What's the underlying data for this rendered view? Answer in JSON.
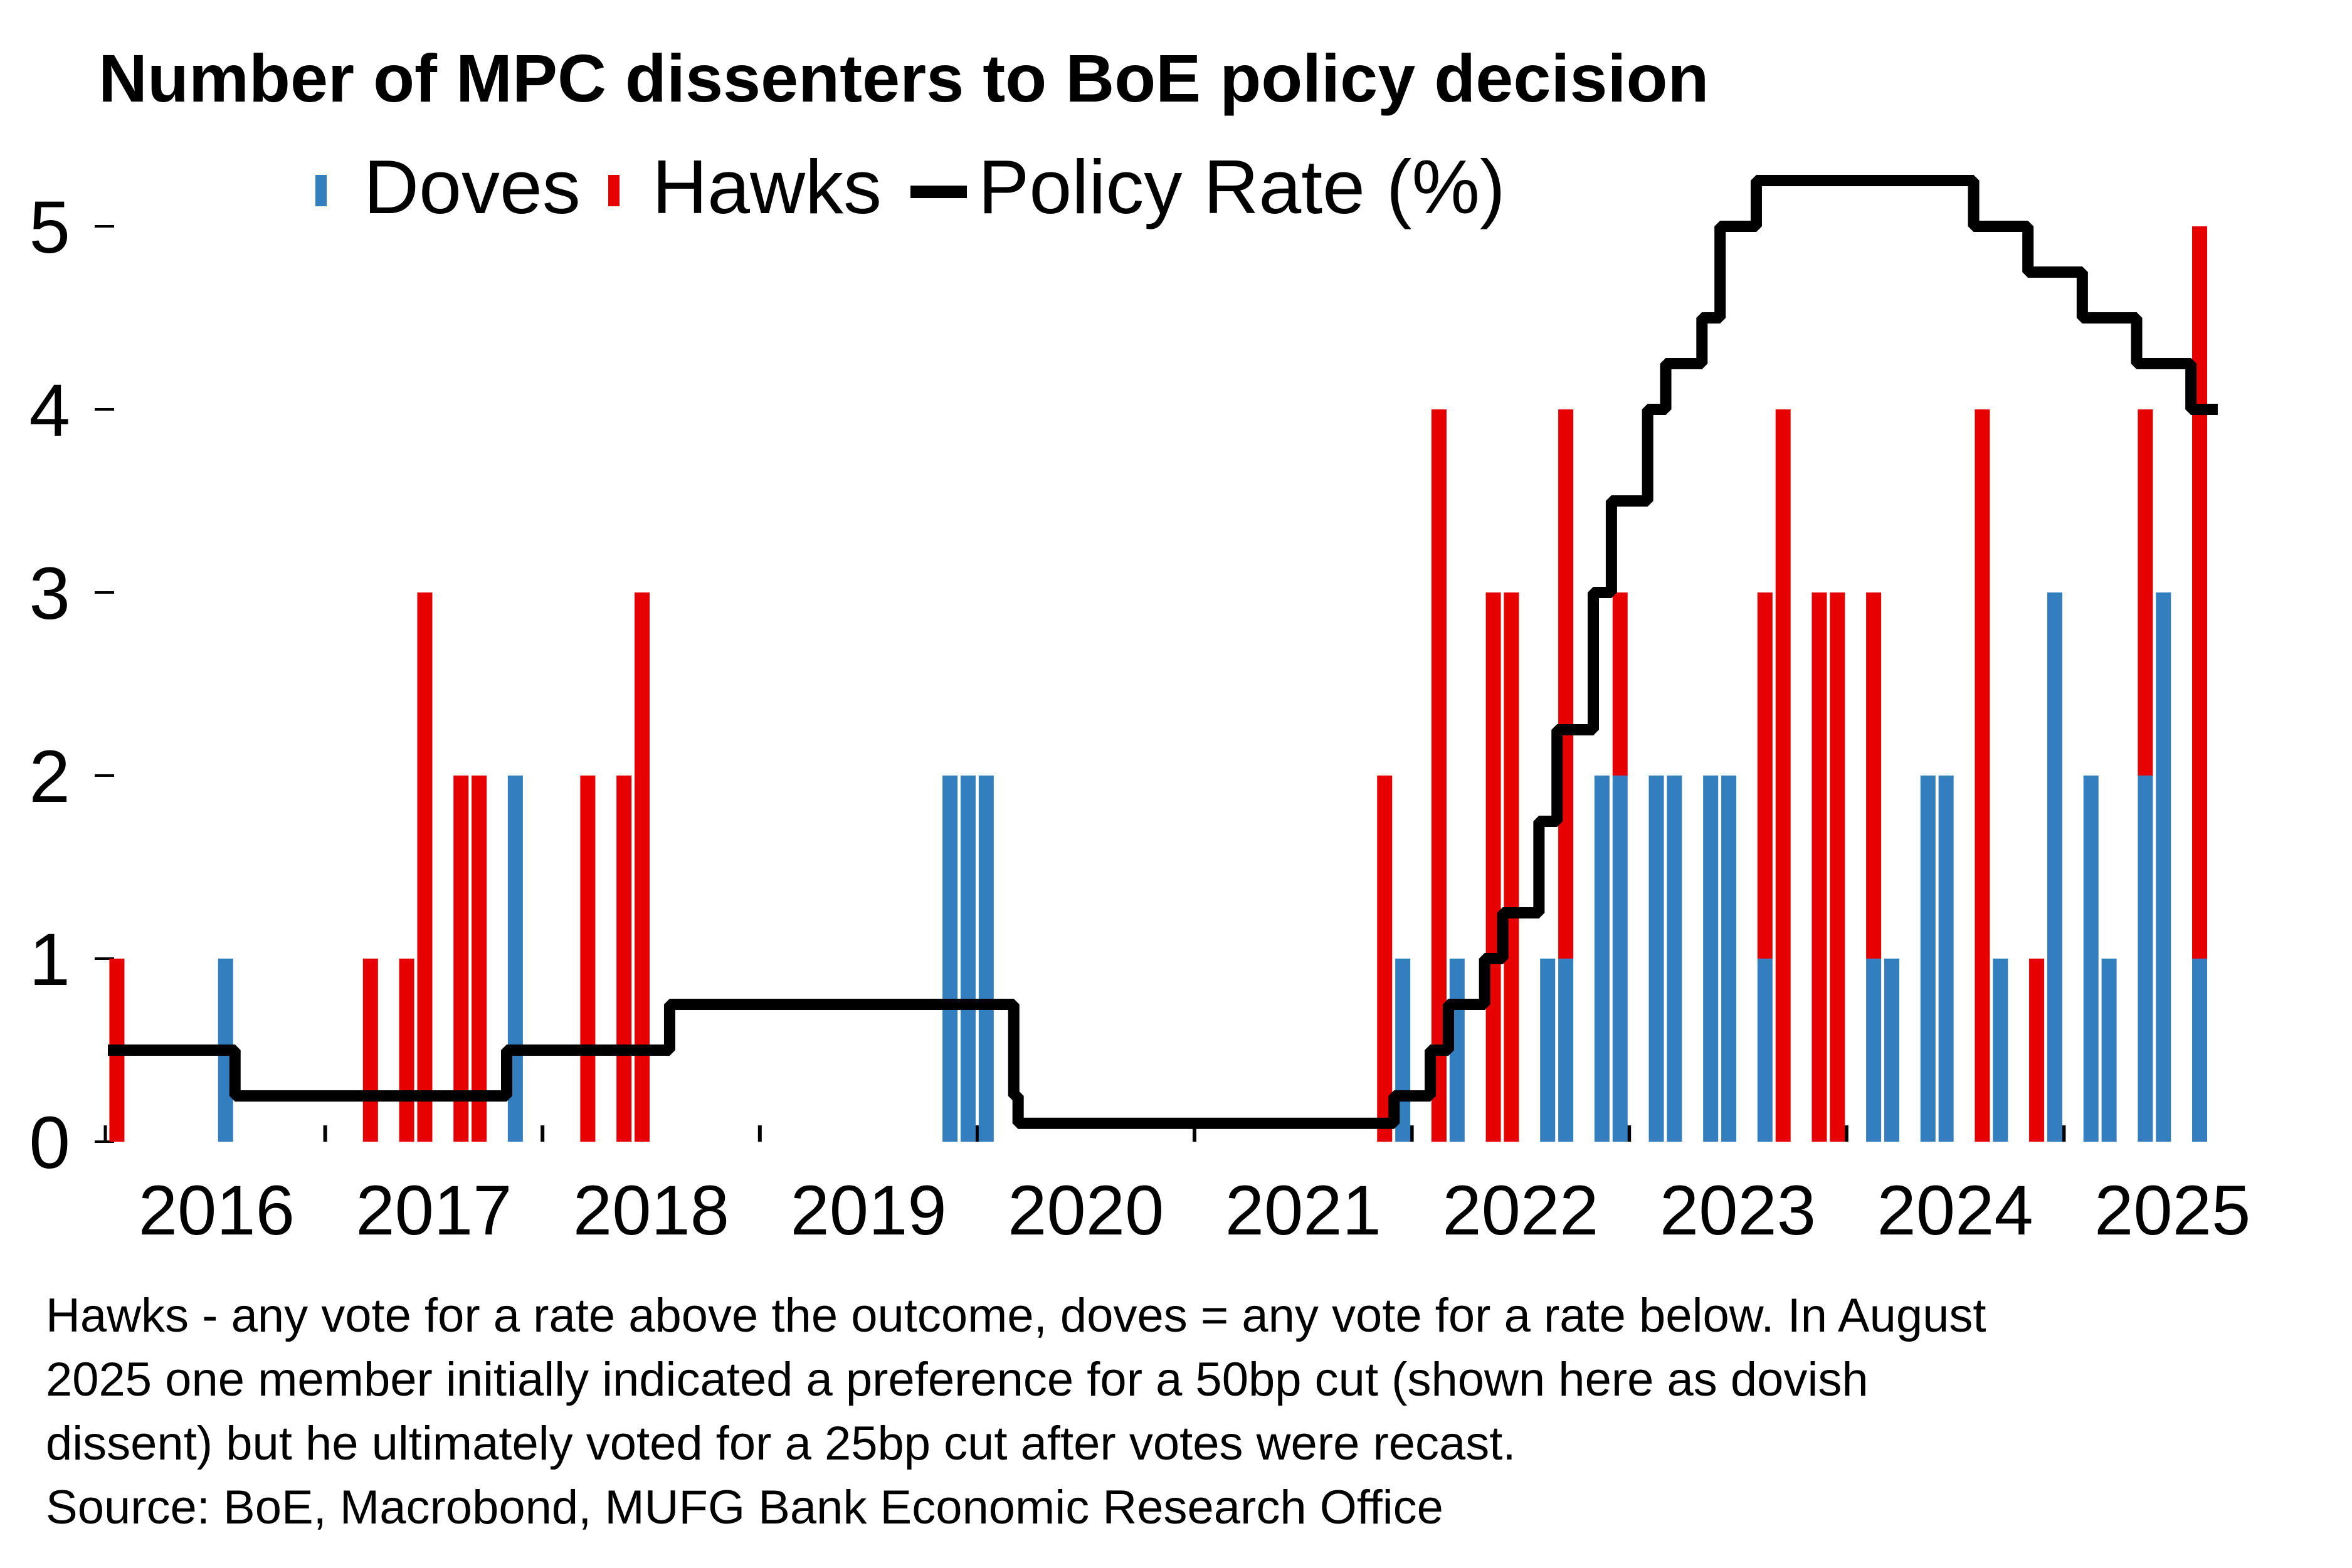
{
  "chart_data": {
    "type": "bar",
    "subtype": "stacked-bar-with-step-line",
    "title": "Number of MPC dissenters to BoE policy decision",
    "xlabel": "",
    "ylabel": "",
    "ylim": [
      0,
      5
    ],
    "yticks": [
      0,
      1,
      2,
      3,
      4,
      5
    ],
    "ytick_labels": [
      "0",
      "1",
      "2",
      "3",
      "4",
      "5"
    ],
    "xlim": [
      2016.0,
      2025.75
    ],
    "xtick_labels": [
      "2016",
      "2017",
      "2018",
      "2019",
      "2020",
      "2021",
      "2022",
      "2023",
      "2024",
      "2025"
    ],
    "grid": false,
    "legend": {
      "placement": "top",
      "entries": [
        {
          "label": "Doves",
          "marker": "square",
          "color": "#337EBF"
        },
        {
          "label": "Hawks",
          "marker": "square",
          "color": "#E60000"
        },
        {
          "label": "Policy Rate (%)",
          "marker": "line",
          "color": "#000000"
        }
      ]
    },
    "colors": {
      "doves": "#337EBF",
      "hawks": "#E60000",
      "policy_rate": "#000000"
    },
    "meetings": [
      {
        "date": "2016-01",
        "doves": 0,
        "hawks": 1
      },
      {
        "date": "2016-07",
        "doves": 1,
        "hawks": 0
      },
      {
        "date": "2017-03",
        "doves": 0,
        "hawks": 1
      },
      {
        "date": "2017-05",
        "doves": 0,
        "hawks": 1
      },
      {
        "date": "2017-06",
        "doves": 0,
        "hawks": 3
      },
      {
        "date": "2017-08",
        "doves": 0,
        "hawks": 2
      },
      {
        "date": "2017-09",
        "doves": 0,
        "hawks": 2
      },
      {
        "date": "2017-11",
        "doves": 2,
        "hawks": 0
      },
      {
        "date": "2018-03",
        "doves": 0,
        "hawks": 2
      },
      {
        "date": "2018-05",
        "doves": 0,
        "hawks": 2
      },
      {
        "date": "2018-06",
        "doves": 0,
        "hawks": 3
      },
      {
        "date": "2019-11",
        "doves": 2,
        "hawks": 0
      },
      {
        "date": "2019-12",
        "doves": 2,
        "hawks": 0
      },
      {
        "date": "2020-01",
        "doves": 2,
        "hawks": 0
      },
      {
        "date": "2021-11",
        "doves": 0,
        "hawks": 2
      },
      {
        "date": "2021-12",
        "doves": 1,
        "hawks": 0
      },
      {
        "date": "2022-02",
        "doves": 0,
        "hawks": 4
      },
      {
        "date": "2022-03",
        "doves": 1,
        "hawks": 0
      },
      {
        "date": "2022-05",
        "doves": 0,
        "hawks": 3
      },
      {
        "date": "2022-06",
        "doves": 0,
        "hawks": 3
      },
      {
        "date": "2022-08",
        "doves": 1,
        "hawks": 0
      },
      {
        "date": "2022-09",
        "doves": 1,
        "hawks": 3
      },
      {
        "date": "2022-11",
        "doves": 2,
        "hawks": 0
      },
      {
        "date": "2022-12",
        "doves": 2,
        "hawks": 1
      },
      {
        "date": "2023-02",
        "doves": 2,
        "hawks": 0
      },
      {
        "date": "2023-03",
        "doves": 2,
        "hawks": 0
      },
      {
        "date": "2023-05",
        "doves": 2,
        "hawks": 0
      },
      {
        "date": "2023-06",
        "doves": 2,
        "hawks": 0
      },
      {
        "date": "2023-08",
        "doves": 1,
        "hawks": 2
      },
      {
        "date": "2023-09",
        "doves": 0,
        "hawks": 4
      },
      {
        "date": "2023-11",
        "doves": 0,
        "hawks": 3
      },
      {
        "date": "2023-12",
        "doves": 0,
        "hawks": 3
      },
      {
        "date": "2024-02",
        "doves": 1,
        "hawks": 2
      },
      {
        "date": "2024-03",
        "doves": 1,
        "hawks": 0
      },
      {
        "date": "2024-05",
        "doves": 2,
        "hawks": 0
      },
      {
        "date": "2024-06",
        "doves": 2,
        "hawks": 0
      },
      {
        "date": "2024-08",
        "doves": 0,
        "hawks": 4
      },
      {
        "date": "2024-09",
        "doves": 1,
        "hawks": 0
      },
      {
        "date": "2024-11",
        "doves": 0,
        "hawks": 1
      },
      {
        "date": "2024-12",
        "doves": 3,
        "hawks": 0
      },
      {
        "date": "2025-02",
        "doves": 2,
        "hawks": 0
      },
      {
        "date": "2025-03",
        "doves": 1,
        "hawks": 0
      },
      {
        "date": "2025-05",
        "doves": 2,
        "hawks": 2
      },
      {
        "date": "2025-06",
        "doves": 3,
        "hawks": 0
      },
      {
        "date": "2025-08",
        "doves": 1,
        "hawks": 4
      }
    ],
    "policy_rate": [
      {
        "date": "2016-01",
        "value": 0.5
      },
      {
        "date": "2016-08",
        "value": 0.25
      },
      {
        "date": "2017-11",
        "value": 0.5
      },
      {
        "date": "2018-08",
        "value": 0.75
      },
      {
        "date": "2020-03",
        "value": 0.25
      },
      {
        "date": "2020-03b",
        "value": 0.1
      },
      {
        "date": "2021-12",
        "value": 0.25
      },
      {
        "date": "2022-02",
        "value": 0.5
      },
      {
        "date": "2022-03",
        "value": 0.75
      },
      {
        "date": "2022-05",
        "value": 1.0
      },
      {
        "date": "2022-06",
        "value": 1.25
      },
      {
        "date": "2022-08",
        "value": 1.75
      },
      {
        "date": "2022-09",
        "value": 2.25
      },
      {
        "date": "2022-11",
        "value": 3.0
      },
      {
        "date": "2022-12",
        "value": 3.5
      },
      {
        "date": "2023-02",
        "value": 4.0
      },
      {
        "date": "2023-03",
        "value": 4.25
      },
      {
        "date": "2023-05",
        "value": 4.5
      },
      {
        "date": "2023-06",
        "value": 5.0
      },
      {
        "date": "2023-08",
        "value": 5.25
      },
      {
        "date": "2024-08",
        "value": 5.0
      },
      {
        "date": "2024-11",
        "value": 4.75
      },
      {
        "date": "2025-02",
        "value": 4.5
      },
      {
        "date": "2025-05",
        "value": 4.25
      },
      {
        "date": "2025-08",
        "value": 4.0
      }
    ],
    "policy_rate_end": "2025-09",
    "notes": [
      "Hawks - any vote for a rate above the outcome, doves = any vote for a rate below. In August",
      "2025 one member initially indicated a preference for a 50bp cut (shown here as dovish",
      "dissent) but he ultimately voted for a 25bp cut after votes were recast.",
      "Source: BoE, Macrobond, MUFG Bank Economic Research Office"
    ]
  }
}
